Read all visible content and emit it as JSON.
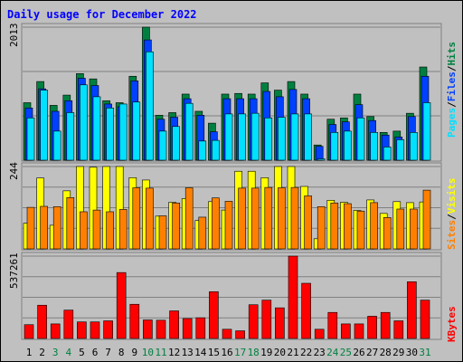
{
  "title": "Daily usage for December 2022",
  "colors": {
    "hits": "#008040",
    "files": "#0040ff",
    "pages": "#00e0ff",
    "visits": "#ffff00",
    "sites": "#ff8000",
    "kbytes": "#ff0000",
    "weekend_label": "#008040",
    "weekday_label": "#000000"
  },
  "legend_top": {
    "pages": "Pages",
    "files": "Files",
    "hits": "Hits",
    "sep": "/"
  },
  "legend_mid": {
    "sites": "Sites",
    "visits": "Visits",
    "sep": "/"
  },
  "legend_bot": {
    "kbytes": "KBytes"
  },
  "chart_data": {
    "type": "bar",
    "title": "Daily usage for December 2022",
    "categories": [
      "1",
      "2",
      "3",
      "4",
      "5",
      "6",
      "7",
      "8",
      "9",
      "10",
      "11",
      "12",
      "13",
      "14",
      "15",
      "16",
      "17",
      "18",
      "19",
      "20",
      "21",
      "22",
      "23",
      "24",
      "25",
      "26",
      "27",
      "28",
      "29",
      "30",
      "31"
    ],
    "weekend_days": [
      "3",
      "4",
      "10",
      "11",
      "17",
      "18",
      "24",
      "25",
      "31"
    ],
    "panels": [
      {
        "name": "hits_files_pages",
        "ymax_label": "2013",
        "ylim": [
          0,
          2013
        ],
        "series": [
          {
            "name": "Hits",
            "values": [
              870,
              1190,
              830,
              985,
              1310,
              1230,
              900,
              870,
              1270,
              2013,
              680,
              720,
              1000,
              740,
              560,
              1000,
              1010,
              1000,
              1170,
              1060,
              1190,
              1000,
              230,
              620,
              640,
              1000,
              660,
              420,
              440,
              710,
              1410
            ]
          },
          {
            "name": "Files",
            "values": [
              790,
              1080,
              740,
              900,
              1240,
              1130,
              850,
              810,
              1200,
              1820,
              620,
              650,
              930,
              680,
              430,
              930,
              930,
              930,
              1040,
              960,
              1070,
              930,
              210,
              540,
              580,
              840,
              600,
              380,
              350,
              660,
              1270
            ]
          },
          {
            "name": "Pages",
            "values": [
              640,
              1060,
              440,
              720,
              1140,
              960,
              790,
              850,
              880,
              1640,
              440,
              510,
              860,
              290,
              300,
              700,
              700,
              710,
              640,
              650,
              700,
              700,
              20,
              420,
              440,
              640,
              420,
              200,
              310,
              420,
              870
            ]
          }
        ]
      },
      {
        "name": "visits_sites",
        "ymax_label": "244",
        "ylim": [
          0,
          244
        ],
        "series": [
          {
            "name": "Visits",
            "values": [
              76,
              210,
              70,
              172,
              244,
              242,
              244,
              244,
              211,
              204,
              97,
              138,
              149,
              84,
              140,
              115,
              230,
              230,
              211,
              244,
              244,
              185,
              30,
              144,
              138,
              114,
              145,
              105,
              140,
              137,
              139
            ]
          },
          {
            "name": "Sites",
            "values": [
              123,
              126,
              125,
              152,
              110,
              115,
              110,
              117,
              181,
              180,
              98,
              136,
              181,
              94,
              151,
              141,
              180,
              180,
              182,
              181,
              182,
              157,
              125,
              136,
              134,
              112,
              137,
              93,
              118,
              118,
              174
            ]
          }
        ]
      },
      {
        "name": "kbytes",
        "ymax_label": "537261",
        "ylim": [
          0,
          537261
        ],
        "series": [
          {
            "name": "KBytes",
            "values": [
              90000,
              217000,
              95000,
              185000,
              108000,
              108000,
              115000,
              430000,
              223000,
              121000,
              119000,
              180000,
              130000,
              135000,
              305000,
              60000,
              50000,
              220000,
              250000,
              200000,
              537261,
              360000,
              60000,
              170000,
              95000,
              95000,
              145000,
              170000,
              115000,
              370000,
              250000
            ]
          }
        ]
      }
    ]
  }
}
